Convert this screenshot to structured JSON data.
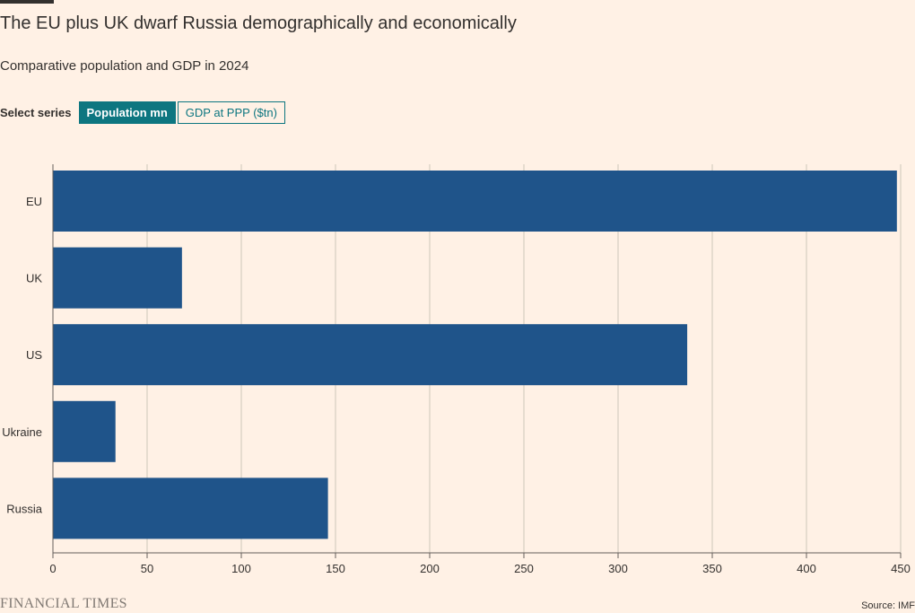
{
  "header": {
    "title": "The EU plus UK dwarf Russia demographically and economically",
    "subtitle": "Comparative population and GDP in 2024"
  },
  "controls": {
    "label": "Select series",
    "buttons": [
      {
        "label": "Population mn",
        "active": true
      },
      {
        "label": "GDP at PPP ($tn)",
        "active": false
      }
    ]
  },
  "colors": {
    "bar": "#1F548A",
    "grid": "#CEC6B9",
    "axis": "#66605C",
    "text": "#33302E",
    "accent": "#0D7680",
    "background": "#FFF1E5"
  },
  "chart_data": {
    "type": "bar",
    "orientation": "horizontal",
    "categories": [
      "EU",
      "UK",
      "US",
      "Ukraine",
      "Russia"
    ],
    "values": [
      448,
      68.5,
      336.7,
      33.2,
      146
    ],
    "series": [
      {
        "values": [
          448,
          68.5,
          336.7,
          33.2,
          146
        ]
      }
    ],
    "xlim": [
      0,
      450
    ],
    "xticks": [
      0,
      50,
      100,
      150,
      200,
      250,
      300,
      350,
      400,
      450
    ],
    "grid": true
  },
  "footer": {
    "logo": "FINANCIAL TIMES",
    "source": "Source: IMF"
  }
}
